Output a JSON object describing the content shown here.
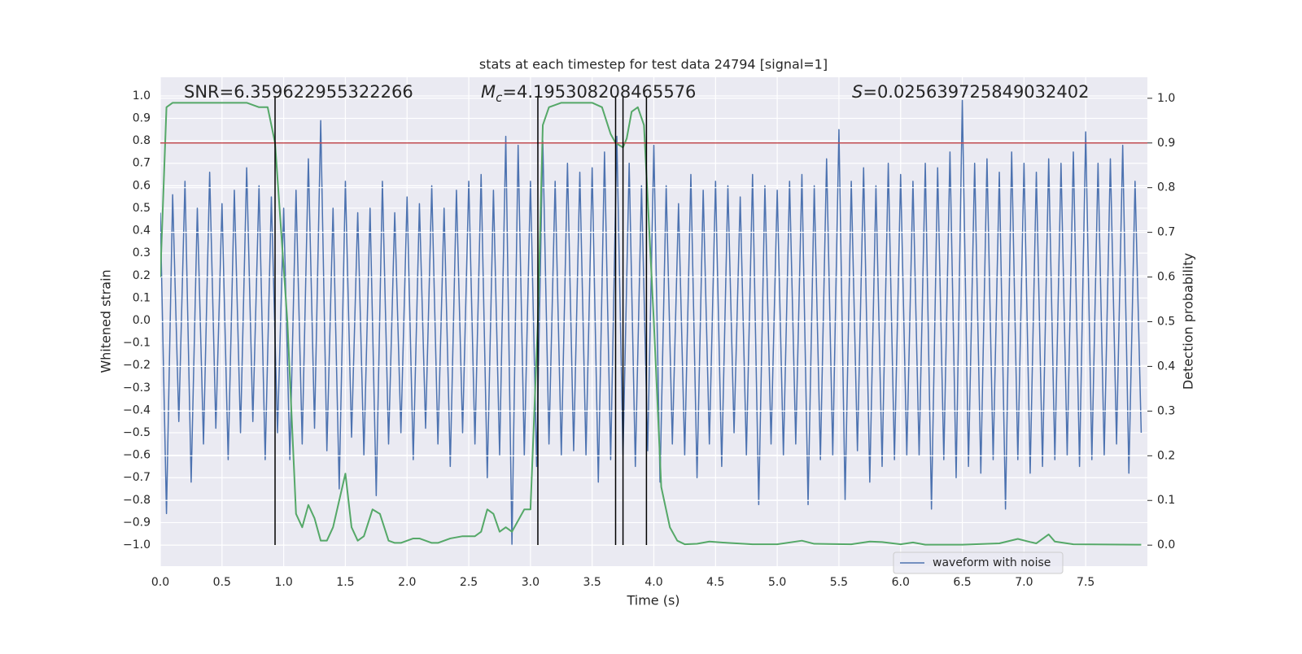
{
  "chart_data": {
    "type": "line",
    "title": "stats at each timestep for test data 24794 [signal=1]",
    "xlabel": "Time (s)",
    "ylabel": "Whitened strain",
    "y2label": "Detection probability",
    "annotations": [
      {
        "text": "SNR=6.359622955322266"
      },
      {
        "symbol": "M",
        "subscript": "c",
        "text": "=4.195308208465576"
      },
      {
        "symbol": "S",
        "text": "=0.025639725849032402"
      }
    ],
    "xlim": [
      0,
      8.0
    ],
    "ylim": [
      -1.094,
      1.083
    ],
    "y2lim": [
      -0.047,
      1.047
    ],
    "grid": true,
    "legend": "lower right",
    "xticks": [
      {
        "value": 0,
        "label": "0.0"
      },
      {
        "value": 0.5,
        "label": "0.5"
      },
      {
        "value": 1,
        "label": "1.0"
      },
      {
        "value": 1.5,
        "label": "1.5"
      },
      {
        "value": 2,
        "label": "2.0"
      },
      {
        "value": 2.5,
        "label": "2.5"
      },
      {
        "value": 3,
        "label": "3.0"
      },
      {
        "value": 3.5,
        "label": "3.5"
      },
      {
        "value": 4,
        "label": "4.0"
      },
      {
        "value": 4.5,
        "label": "4.5"
      },
      {
        "value": 5,
        "label": "5.0"
      },
      {
        "value": 5.5,
        "label": "5.5"
      },
      {
        "value": 6,
        "label": "6.0"
      },
      {
        "value": 6.5,
        "label": "6.5"
      },
      {
        "value": 7,
        "label": "7.0"
      },
      {
        "value": 7.5,
        "label": "7.5"
      }
    ],
    "yticks": [
      {
        "value": -1,
        "label": "−1.0"
      },
      {
        "value": -0.9,
        "label": "−0.9"
      },
      {
        "value": -0.8,
        "label": "−0.8"
      },
      {
        "value": -0.7,
        "label": "−0.7"
      },
      {
        "value": -0.6,
        "label": "−0.6"
      },
      {
        "value": -0.5,
        "label": "−0.5"
      },
      {
        "value": -0.4,
        "label": "−0.4"
      },
      {
        "value": -0.3,
        "label": "−0.3"
      },
      {
        "value": -0.2,
        "label": "−0.2"
      },
      {
        "value": -0.1,
        "label": "−0.1"
      },
      {
        "value": 0,
        "label": "0.0"
      },
      {
        "value": 0.1,
        "label": "0.1"
      },
      {
        "value": 0.2,
        "label": "0.2"
      },
      {
        "value": 0.3,
        "label": "0.3"
      },
      {
        "value": 0.4,
        "label": "0.4"
      },
      {
        "value": 0.5,
        "label": "0.5"
      },
      {
        "value": 0.6,
        "label": "0.6"
      },
      {
        "value": 0.7,
        "label": "0.7"
      },
      {
        "value": 0.8,
        "label": "0.8"
      },
      {
        "value": 0.9,
        "label": "0.9"
      },
      {
        "value": 1,
        "label": "1.0"
      }
    ],
    "y2ticks": [
      {
        "value": 0,
        "label": "0.0"
      },
      {
        "value": 0.1,
        "label": "0.1"
      },
      {
        "value": 0.2,
        "label": "0.2"
      },
      {
        "value": 0.3,
        "label": "0.3"
      },
      {
        "value": 0.4,
        "label": "0.4"
      },
      {
        "value": 0.5,
        "label": "0.5"
      },
      {
        "value": 0.6,
        "label": "0.6"
      },
      {
        "value": 0.7,
        "label": "0.7"
      },
      {
        "value": 0.8,
        "label": "0.8"
      },
      {
        "value": 0.9,
        "label": "0.9"
      },
      {
        "value": 1,
        "label": "1.0"
      }
    ],
    "series": [
      {
        "name": "waveform with noise",
        "color": "#4c72b0",
        "x": [
          0,
          0.05,
          0.1,
          0.15,
          0.2,
          0.25,
          0.3,
          0.35,
          0.4,
          0.45,
          0.5,
          0.55,
          0.6,
          0.65,
          0.7,
          0.75,
          0.8,
          0.85,
          0.9,
          0.95,
          1,
          1.05,
          1.1,
          1.15,
          1.2,
          1.25,
          1.3,
          1.35,
          1.4,
          1.45,
          1.5,
          1.55,
          1.6,
          1.65,
          1.7,
          1.75,
          1.8,
          1.85,
          1.9,
          1.95,
          2,
          2.05,
          2.1,
          2.15,
          2.2,
          2.25,
          2.3,
          2.35,
          2.4,
          2.45,
          2.5,
          2.55,
          2.6,
          2.65,
          2.7,
          2.75,
          2.8,
          2.85,
          2.9,
          2.95,
          3,
          3.05,
          3.1,
          3.15,
          3.2,
          3.25,
          3.3,
          3.35,
          3.4,
          3.45,
          3.5,
          3.55,
          3.6,
          3.65,
          3.7,
          3.75,
          3.8,
          3.85,
          3.9,
          3.95,
          4,
          4.05,
          4.1,
          4.15,
          4.2,
          4.25,
          4.3,
          4.35,
          4.4,
          4.45,
          4.5,
          4.55,
          4.6,
          4.65,
          4.7,
          4.75,
          4.8,
          4.85,
          4.9,
          4.95,
          5,
          5.05,
          5.1,
          5.15,
          5.2,
          5.25,
          5.3,
          5.35,
          5.4,
          5.45,
          5.5,
          5.55,
          5.6,
          5.65,
          5.7,
          5.75,
          5.8,
          5.85,
          5.9,
          5.95,
          6,
          6.05,
          6.1,
          6.15,
          6.2,
          6.25,
          6.3,
          6.35,
          6.4,
          6.45,
          6.5,
          6.55,
          6.6,
          6.65,
          6.7,
          6.75,
          6.8,
          6.85,
          6.9,
          6.95,
          7,
          7.05,
          7.1,
          7.15,
          7.2,
          7.25,
          7.3,
          7.35,
          7.4,
          7.45,
          7.5,
          7.55,
          7.6,
          7.65,
          7.7,
          7.75,
          7.8,
          7.85,
          7.9,
          7.95
        ],
        "values": [
          0.48,
          -0.86,
          0.56,
          -0.45,
          0.62,
          -0.72,
          0.5,
          -0.55,
          0.66,
          -0.48,
          0.52,
          -0.62,
          0.58,
          -0.5,
          0.68,
          -0.45,
          0.6,
          -0.62,
          0.55,
          -0.5,
          0.5,
          -0.62,
          0.58,
          -0.55,
          0.72,
          -0.48,
          0.89,
          -0.58,
          0.5,
          -0.75,
          0.62,
          -0.52,
          0.48,
          -0.6,
          0.5,
          -0.78,
          0.62,
          -0.55,
          0.48,
          -0.5,
          0.55,
          -0.62,
          0.52,
          -0.48,
          0.6,
          -0.55,
          0.5,
          -0.65,
          0.58,
          -0.5,
          0.62,
          -0.55,
          0.65,
          -0.7,
          0.58,
          -0.6,
          0.82,
          -1.0,
          0.78,
          -0.6,
          0.62,
          -0.65,
          0.8,
          -0.55,
          0.62,
          -0.6,
          0.7,
          -0.58,
          0.66,
          -0.6,
          0.68,
          -0.72,
          0.75,
          -0.62,
          0.82,
          -0.6,
          0.7,
          -0.65,
          0.6,
          -0.58,
          0.78,
          -0.72,
          0.6,
          -0.55,
          0.52,
          -0.6,
          0.65,
          -0.7,
          0.58,
          -0.55,
          0.62,
          -0.65,
          0.6,
          -0.5,
          0.55,
          -0.6,
          0.65,
          -0.82,
          0.6,
          -0.55,
          0.58,
          -0.6,
          0.62,
          -0.55,
          0.65,
          -0.82,
          0.6,
          -0.62,
          0.72,
          -0.6,
          0.85,
          -0.8,
          0.62,
          -0.58,
          0.68,
          -0.72,
          0.6,
          -0.65,
          0.7,
          -0.62,
          0.65,
          -0.6,
          0.62,
          -0.6,
          0.7,
          -0.84,
          0.68,
          -0.62,
          0.75,
          -0.7,
          0.98,
          -0.65,
          0.7,
          -0.68,
          0.72,
          -0.62,
          0.66,
          -0.84,
          0.75,
          -0.62,
          0.7,
          -0.68,
          0.66,
          -0.65,
          0.72,
          -0.62,
          0.7,
          -0.6,
          0.75,
          -0.65,
          0.84,
          -0.62,
          0.7,
          -0.6,
          0.72,
          -0.55,
          0.78,
          -0.68,
          0.62,
          -0.5
        ]
      },
      {
        "color": "#55a868",
        "axis": "y2",
        "x": [
          0,
          0.05,
          0.1,
          0.4,
          0.7,
          0.8,
          0.87,
          0.93,
          1.03,
          1.1,
          1.15,
          1.2,
          1.25,
          1.3,
          1.35,
          1.4,
          1.5,
          1.55,
          1.6,
          1.65,
          1.72,
          1.78,
          1.85,
          1.9,
          1.95,
          2.05,
          2.1,
          2.2,
          2.25,
          2.35,
          2.45,
          2.55,
          2.6,
          2.65,
          2.7,
          2.75,
          2.8,
          2.85,
          2.95,
          3.0,
          3.06,
          3.1,
          3.15,
          3.25,
          3.5,
          3.58,
          3.65,
          3.69,
          3.75,
          3.78,
          3.82,
          3.87,
          3.92,
          4.0,
          4.06,
          4.13,
          4.19,
          4.25,
          4.35,
          4.45,
          4.6,
          4.8,
          5.0,
          5.2,
          5.3,
          5.6,
          5.75,
          5.85,
          6.0,
          6.1,
          6.2,
          6.5,
          6.8,
          6.95,
          7.05,
          7.1,
          7.2,
          7.25,
          7.4,
          7.95
        ],
        "values": [
          0.6,
          0.98,
          0.99,
          0.99,
          0.99,
          0.98,
          0.98,
          0.9,
          0.5,
          0.07,
          0.04,
          0.09,
          0.06,
          0.01,
          0.01,
          0.04,
          0.16,
          0.04,
          0.01,
          0.02,
          0.08,
          0.07,
          0.01,
          0.005,
          0.005,
          0.015,
          0.015,
          0.005,
          0.005,
          0.015,
          0.02,
          0.02,
          0.03,
          0.08,
          0.07,
          0.03,
          0.04,
          0.03,
          0.08,
          0.08,
          0.5,
          0.94,
          0.98,
          0.99,
          0.99,
          0.98,
          0.92,
          0.9,
          0.89,
          0.91,
          0.97,
          0.98,
          0.94,
          0.5,
          0.13,
          0.04,
          0.01,
          0.002,
          0.003,
          0.008,
          0.005,
          0.002,
          0.002,
          0.01,
          0.003,
          0.002,
          0.008,
          0.007,
          0.002,
          0.006,
          0.001,
          0.001,
          0.004,
          0.014,
          0.007,
          0.004,
          0.024,
          0.008,
          0.002,
          0.001
        ]
      }
    ],
    "hline": {
      "value": 0.9,
      "axis": "y2",
      "color": "#c44e52"
    },
    "vlines": {
      "x": [
        0.93,
        3.06,
        3.69,
        3.75,
        3.94
      ],
      "ymin": -1.0,
      "ymax": 1.0,
      "color": "#000000"
    }
  }
}
